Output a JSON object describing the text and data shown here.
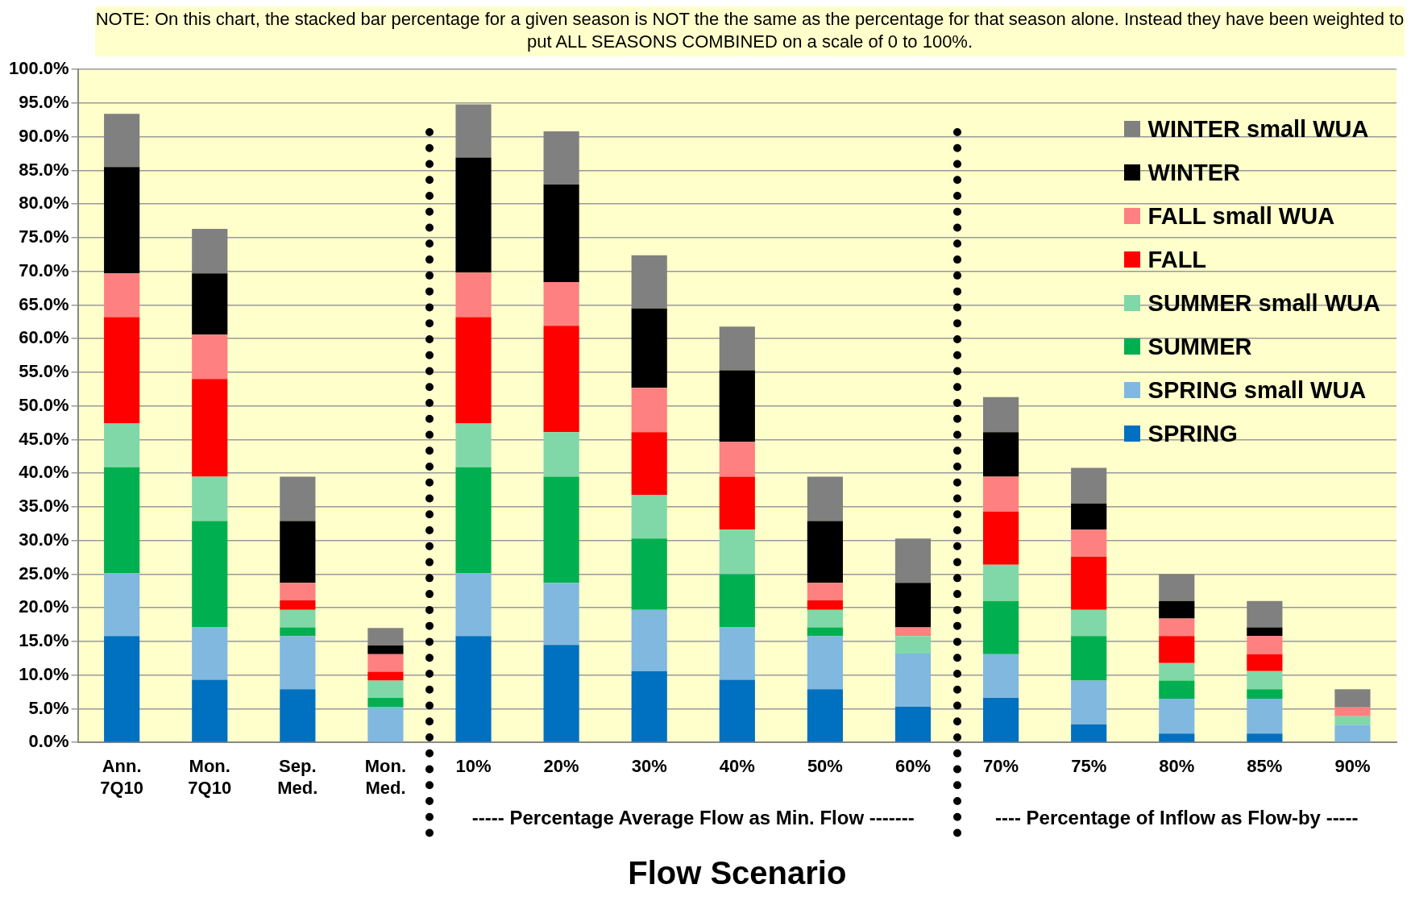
{
  "chart_data": {
    "type": "bar",
    "title": "NOTE:  On this chart, the stacked bar percentage for a given season is NOT the the same as the percentage for that season alone.  Instead they have been weighted to put ALL SEASONS COMBINED on a scale of 0 to 100%.",
    "xlabel": "Flow Scenario",
    "stacked": true,
    "grid": "y",
    "legend": "top right",
    "categories": [
      "Ann.\n7Q10",
      "Mon.\n7Q10",
      "Sep.\nMed.",
      "Mon.\nMed.",
      "10%",
      "20%",
      "30%",
      "40%",
      "50%",
      "60%",
      "70%",
      "75%",
      "80%",
      "85%",
      "90%"
    ],
    "annotations": [
      "----- Percentage Average Flow as Min. Flow -------",
      "---- Percentage of Inflow as Flow-by -----"
    ],
    "ylim": [
      0,
      100
    ],
    "yticks": [
      {
        "value": 0,
        "label": "0.0%"
      },
      {
        "value": 5,
        "label": "5.0%"
      },
      {
        "value": 10,
        "label": "10.0%"
      },
      {
        "value": 15,
        "label": "15.0%"
      },
      {
        "value": 20,
        "label": "20.0%"
      },
      {
        "value": 25,
        "label": "25.0%"
      },
      {
        "value": 30,
        "label": "30.0%"
      },
      {
        "value": 35,
        "label": "35.0%"
      },
      {
        "value": 40,
        "label": "40.0%"
      },
      {
        "value": 45,
        "label": "45.0%"
      },
      {
        "value": 50,
        "label": "50.0%"
      },
      {
        "value": 55,
        "label": "55.0%"
      },
      {
        "value": 60,
        "label": "60.0%"
      },
      {
        "value": 65,
        "label": "65.0%"
      },
      {
        "value": 70,
        "label": "70.0%"
      },
      {
        "value": 75,
        "label": "75.0%"
      },
      {
        "value": 80,
        "label": "80.0%"
      },
      {
        "value": 85,
        "label": "85.0%"
      },
      {
        "value": 90,
        "label": "90.0%"
      },
      {
        "value": 95,
        "label": "95.0%"
      },
      {
        "value": 100,
        "label": "100.0%"
      }
    ],
    "series": [
      {
        "name": "SPRING",
        "color": "#0070c0",
        "values": [
          15.8,
          9.3,
          7.9,
          0,
          15.8,
          14.5,
          10.6,
          9.3,
          7.9,
          5.3,
          6.6,
          2.7,
          1.3,
          1.3,
          0
        ]
      },
      {
        "name": "SPRING small WUA",
        "color": "#80b8e0",
        "values": [
          9.3,
          7.8,
          7.9,
          5.3,
          9.3,
          9.2,
          9.1,
          7.8,
          7.9,
          7.9,
          6.5,
          6.5,
          5.2,
          5.2,
          2.6
        ]
      },
      {
        "name": "SUMMER",
        "color": "#00b050",
        "values": [
          15.8,
          15.8,
          1.3,
          1.3,
          15.8,
          15.8,
          10.6,
          7.9,
          1.3,
          0,
          7.9,
          6.6,
          2.7,
          1.4,
          0
        ]
      },
      {
        "name": "SUMMER small WUA",
        "color": "#80d8a8",
        "values": [
          6.5,
          6.6,
          2.6,
          2.6,
          6.5,
          6.6,
          6.5,
          6.6,
          2.6,
          2.6,
          5.4,
          3.9,
          2.6,
          2.7,
          1.3
        ]
      },
      {
        "name": "FALL",
        "color": "#ff0000",
        "values": [
          15.8,
          14.5,
          1.4,
          1.3,
          15.8,
          15.8,
          9.3,
          7.9,
          1.4,
          0,
          7.9,
          7.9,
          4.0,
          2.5,
          0
        ]
      },
      {
        "name": "FALL small WUA",
        "color": "#ff8080",
        "values": [
          6.5,
          6.6,
          2.6,
          2.6,
          6.6,
          6.5,
          6.6,
          5.2,
          2.6,
          1.3,
          5.2,
          4.0,
          2.6,
          2.7,
          1.3
        ]
      },
      {
        "name": "WINTER",
        "color": "#000000",
        "values": [
          15.8,
          9.1,
          9.2,
          1.3,
          17.1,
          14.5,
          11.8,
          10.6,
          9.2,
          6.6,
          6.6,
          3.9,
          2.6,
          1.3,
          0
        ]
      },
      {
        "name": "WINTER small WUA",
        "color": "#808080",
        "values": [
          7.9,
          6.6,
          6.6,
          2.6,
          7.9,
          7.9,
          7.9,
          6.5,
          6.6,
          6.6,
          5.2,
          5.3,
          4.0,
          3.9,
          2.7
        ]
      }
    ]
  }
}
